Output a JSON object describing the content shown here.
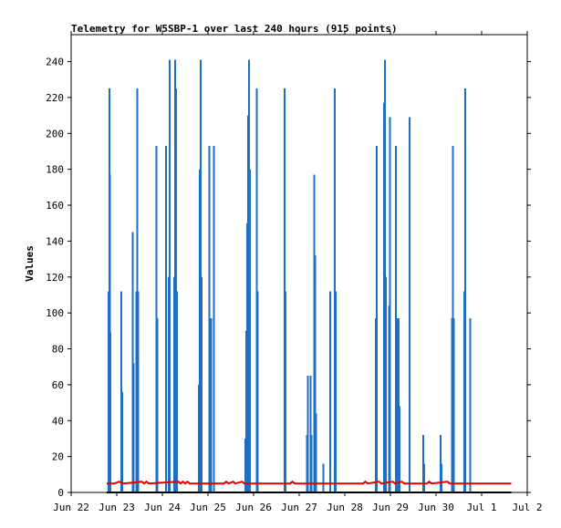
{
  "chart_data": {
    "type": "bar",
    "title": "Telemetry for W5SBP-1 over last 240 hours (915 points)",
    "xlabel": "",
    "ylabel": "Values",
    "xlim": [
      0,
      10
    ],
    "ylim": [
      0,
      255
    ],
    "x_ticks": [
      {
        "pos": 0,
        "label": "Jun 22"
      },
      {
        "pos": 1,
        "label": "Jun 23"
      },
      {
        "pos": 2,
        "label": "Jun 24"
      },
      {
        "pos": 3,
        "label": "Jun 25"
      },
      {
        "pos": 4,
        "label": "Jun 26"
      },
      {
        "pos": 5,
        "label": "Jun 27"
      },
      {
        "pos": 6,
        "label": "Jun 28"
      },
      {
        "pos": 7,
        "label": "Jun 29"
      },
      {
        "pos": 8,
        "label": "Jun 30"
      },
      {
        "pos": 9,
        "label": "Jul 1"
      },
      {
        "pos": 10,
        "label": "Jul 2"
      }
    ],
    "y_ticks": [
      0,
      20,
      40,
      60,
      80,
      100,
      120,
      140,
      160,
      180,
      200,
      220,
      240
    ],
    "grid": false,
    "series": [
      {
        "color": "#1f6fc0",
        "style": "impulse",
        "points": [
          {
            "x": 0.82,
            "y": 112
          },
          {
            "x": 0.84,
            "y": 225
          },
          {
            "x": 0.85,
            "y": 177
          },
          {
            "x": 0.86,
            "y": 89
          },
          {
            "x": 1.1,
            "y": 112
          },
          {
            "x": 1.12,
            "y": 56
          },
          {
            "x": 1.35,
            "y": 145
          },
          {
            "x": 1.37,
            "y": 72
          },
          {
            "x": 1.43,
            "y": 112
          },
          {
            "x": 1.45,
            "y": 225
          },
          {
            "x": 1.47,
            "y": 112
          },
          {
            "x": 1.87,
            "y": 193
          },
          {
            "x": 1.89,
            "y": 97
          },
          {
            "x": 2.08,
            "y": 193
          },
          {
            "x": 2.14,
            "y": 120
          },
          {
            "x": 2.16,
            "y": 241
          },
          {
            "x": 2.26,
            "y": 120
          },
          {
            "x": 2.28,
            "y": 241
          },
          {
            "x": 2.3,
            "y": 225
          },
          {
            "x": 2.32,
            "y": 112
          },
          {
            "x": 2.8,
            "y": 60
          },
          {
            "x": 2.82,
            "y": 180
          },
          {
            "x": 2.84,
            "y": 241
          },
          {
            "x": 2.86,
            "y": 120
          },
          {
            "x": 3.03,
            "y": 193
          },
          {
            "x": 3.07,
            "y": 97
          },
          {
            "x": 3.13,
            "y": 193
          },
          {
            "x": 3.82,
            "y": 30
          },
          {
            "x": 3.84,
            "y": 90
          },
          {
            "x": 3.86,
            "y": 150
          },
          {
            "x": 3.88,
            "y": 210
          },
          {
            "x": 3.9,
            "y": 241
          },
          {
            "x": 3.92,
            "y": 180
          },
          {
            "x": 4.07,
            "y": 225
          },
          {
            "x": 4.09,
            "y": 112
          },
          {
            "x": 4.68,
            "y": 225
          },
          {
            "x": 4.7,
            "y": 112
          },
          {
            "x": 5.17,
            "y": 32
          },
          {
            "x": 5.19,
            "y": 65
          },
          {
            "x": 5.25,
            "y": 65
          },
          {
            "x": 5.27,
            "y": 32
          },
          {
            "x": 5.33,
            "y": 177
          },
          {
            "x": 5.35,
            "y": 132
          },
          {
            "x": 5.37,
            "y": 44
          },
          {
            "x": 5.53,
            "y": 16
          },
          {
            "x": 5.68,
            "y": 112
          },
          {
            "x": 5.78,
            "y": 225
          },
          {
            "x": 5.8,
            "y": 112
          },
          {
            "x": 6.68,
            "y": 97
          },
          {
            "x": 6.7,
            "y": 193
          },
          {
            "x": 6.86,
            "y": 217
          },
          {
            "x": 6.88,
            "y": 241
          },
          {
            "x": 6.9,
            "y": 120
          },
          {
            "x": 6.97,
            "y": 104
          },
          {
            "x": 6.99,
            "y": 209
          },
          {
            "x": 7.12,
            "y": 193
          },
          {
            "x": 7.14,
            "y": 97
          },
          {
            "x": 7.18,
            "y": 97
          },
          {
            "x": 7.2,
            "y": 48
          },
          {
            "x": 7.42,
            "y": 209
          },
          {
            "x": 7.72,
            "y": 32
          },
          {
            "x": 7.74,
            "y": 16
          },
          {
            "x": 8.1,
            "y": 32
          },
          {
            "x": 8.12,
            "y": 16
          },
          {
            "x": 8.35,
            "y": 97
          },
          {
            "x": 8.37,
            "y": 193
          },
          {
            "x": 8.39,
            "y": 97
          },
          {
            "x": 8.62,
            "y": 112
          },
          {
            "x": 8.64,
            "y": 225
          },
          {
            "x": 8.75,
            "y": 97
          }
        ]
      },
      {
        "color": "#e00000",
        "style": "line",
        "points": [
          {
            "x": 0.78,
            "y": 5
          },
          {
            "x": 0.95,
            "y": 5
          },
          {
            "x": 1.05,
            "y": 6
          },
          {
            "x": 1.15,
            "y": 5
          },
          {
            "x": 1.55,
            "y": 6
          },
          {
            "x": 1.6,
            "y": 5
          },
          {
            "x": 1.65,
            "y": 6
          },
          {
            "x": 1.7,
            "y": 5
          },
          {
            "x": 2.35,
            "y": 6
          },
          {
            "x": 2.4,
            "y": 5
          },
          {
            "x": 2.45,
            "y": 6
          },
          {
            "x": 2.5,
            "y": 5
          },
          {
            "x": 2.55,
            "y": 6
          },
          {
            "x": 2.6,
            "y": 5
          },
          {
            "x": 3.35,
            "y": 5
          },
          {
            "x": 3.4,
            "y": 6
          },
          {
            "x": 3.45,
            "y": 5
          },
          {
            "x": 3.55,
            "y": 6
          },
          {
            "x": 3.6,
            "y": 5
          },
          {
            "x": 3.75,
            "y": 6
          },
          {
            "x": 3.8,
            "y": 5
          },
          {
            "x": 4.8,
            "y": 5
          },
          {
            "x": 4.85,
            "y": 6
          },
          {
            "x": 4.9,
            "y": 5
          },
          {
            "x": 6.4,
            "y": 5
          },
          {
            "x": 6.45,
            "y": 6
          },
          {
            "x": 6.5,
            "y": 5
          },
          {
            "x": 6.75,
            "y": 6
          },
          {
            "x": 6.8,
            "y": 5
          },
          {
            "x": 7.05,
            "y": 6
          },
          {
            "x": 7.1,
            "y": 5
          },
          {
            "x": 7.25,
            "y": 6
          },
          {
            "x": 7.3,
            "y": 5
          },
          {
            "x": 7.8,
            "y": 5
          },
          {
            "x": 7.85,
            "y": 6
          },
          {
            "x": 7.9,
            "y": 5
          },
          {
            "x": 8.25,
            "y": 6
          },
          {
            "x": 8.3,
            "y": 5
          },
          {
            "x": 9.65,
            "y": 5
          }
        ]
      },
      {
        "color": "#000000",
        "style": "line",
        "points": [
          {
            "x": 0.78,
            "y": 0
          },
          {
            "x": 9.65,
            "y": 0
          }
        ]
      }
    ]
  }
}
